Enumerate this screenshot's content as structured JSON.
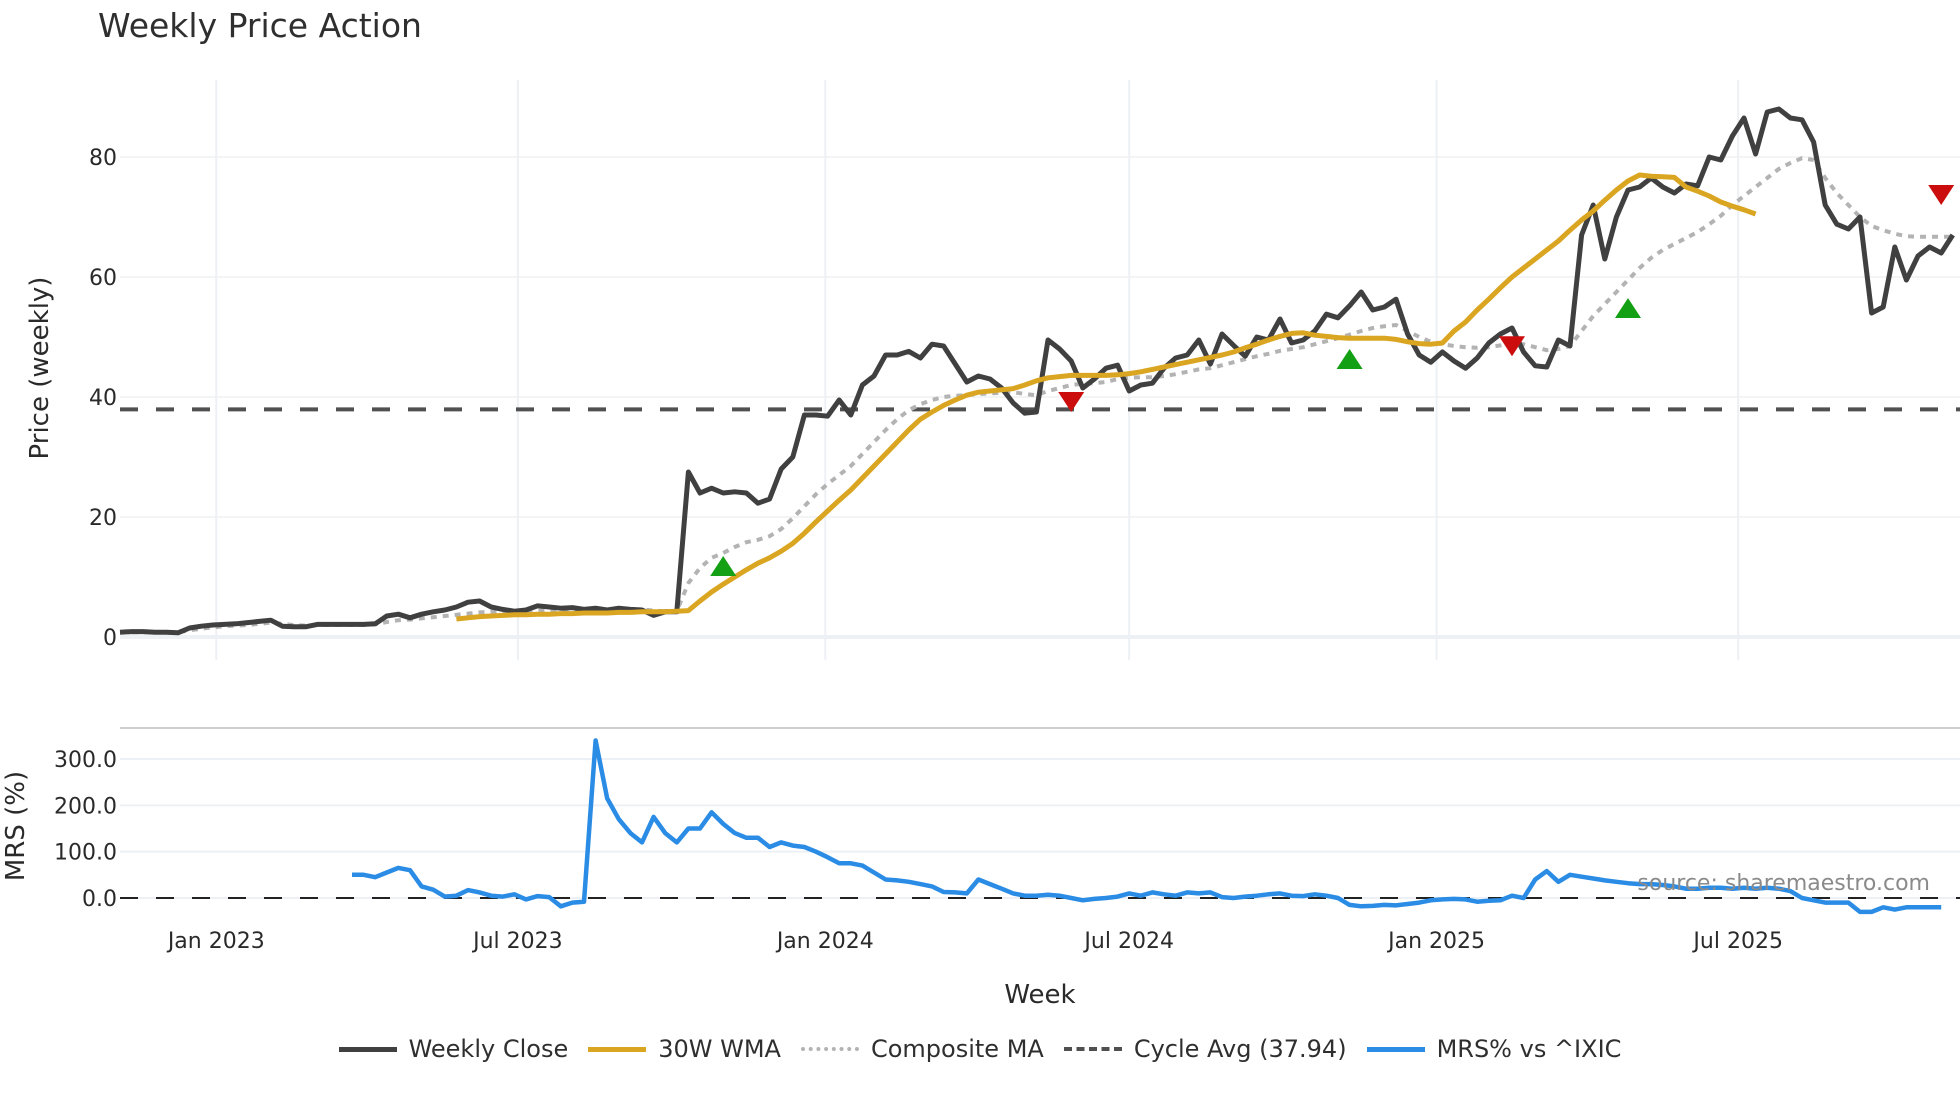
{
  "title": "Weekly Price Action",
  "source_note": "source: sharemaestro.com",
  "colors": {
    "close": "#404040",
    "wma": "#daa520",
    "composite": "#b3b3b3",
    "cycle": "#505050",
    "mrs": "#2b8ce6",
    "buy": "#14a014",
    "sell": "#cc0d0d",
    "grid": "#edf0f4"
  },
  "legend": [
    {
      "key": "close",
      "label": "Weekly Close",
      "style": "solid"
    },
    {
      "key": "wma",
      "label": "30W WMA",
      "style": "solid"
    },
    {
      "key": "composite",
      "label": "Composite MA",
      "style": "dotted"
    },
    {
      "key": "cycle",
      "label": "Cycle Avg (37.94)",
      "style": "dashed"
    },
    {
      "key": "mrs",
      "label": "MRS% vs ^IXIC",
      "style": "solid"
    }
  ],
  "chart_data": [
    {
      "type": "line",
      "title": "Weekly Price Action",
      "xlabel": "Week",
      "ylabel": "Price (weekly)",
      "ylim": [
        0,
        92
      ],
      "yticks": [
        0,
        20,
        40,
        60,
        80
      ],
      "xticks": [
        {
          "label": "Jan 2023",
          "week": 8.3
        },
        {
          "label": "Jul 2023",
          "week": 34.3
        },
        {
          "label": "Jan 2024",
          "week": 60.8
        },
        {
          "label": "Jul 2024",
          "week": 87.0
        },
        {
          "label": "Jan 2025",
          "week": 113.5
        },
        {
          "label": "Jul 2025",
          "week": 139.5
        }
      ],
      "grid": true,
      "legend_position": "bottom",
      "cycle_avg": 37.94,
      "series": [
        {
          "name": "Weekly Close",
          "start_week": 0,
          "values": [
            0.8,
            0.9,
            0.9,
            0.8,
            0.8,
            0.7,
            1.5,
            1.8,
            2.0,
            2.1,
            2.2,
            2.4,
            2.6,
            2.8,
            1.8,
            1.7,
            1.7,
            2.1,
            2.1,
            2.1,
            2.1,
            2.1,
            2.2,
            3.5,
            3.8,
            3.2,
            3.8,
            4.2,
            4.5,
            5.0,
            5.8,
            6.0,
            5.0,
            4.6,
            4.3,
            4.5,
            5.2,
            5.0,
            4.8,
            4.9,
            4.6,
            4.8,
            4.5,
            4.8,
            4.6,
            4.5,
            3.6,
            4.2,
            4.2,
            27.5,
            24.0,
            24.8,
            24.0,
            24.2,
            24.0,
            22.3,
            23.0,
            28.0,
            30.0,
            37.0,
            37.0,
            36.8,
            39.5,
            37.0,
            42.0,
            43.5,
            47.0,
            47.0,
            47.6,
            46.5,
            48.8,
            48.5,
            45.5,
            42.5,
            43.5,
            43.0,
            41.5,
            39.0,
            37.3,
            37.5,
            49.5,
            48.0,
            46.0,
            41.5,
            43.0,
            44.8,
            45.3,
            41.0,
            42.0,
            42.3,
            44.8,
            46.5,
            47.0,
            49.5,
            45.5,
            50.5,
            48.6,
            46.8,
            50.0,
            49.5,
            53.0,
            49.0,
            49.5,
            51.0,
            53.8,
            53.2,
            55.2,
            57.5,
            54.5,
            55.0,
            56.3,
            50.5,
            47.0,
            45.8,
            47.5,
            46.0,
            44.8,
            46.5,
            49.0,
            50.5,
            51.5,
            47.5,
            45.2,
            45.0,
            49.5,
            48.5,
            67.0,
            72.0,
            63.0,
            70.0,
            74.5,
            75.0,
            76.5,
            75.0,
            74.0,
            75.5,
            75.2,
            80.0,
            79.5,
            83.5,
            86.5,
            80.5,
            87.5,
            88.0,
            86.5,
            86.2,
            82.5,
            72.0,
            68.8,
            68.0,
            70.0,
            54.0,
            55.0,
            65.0,
            59.5,
            63.5,
            65.0,
            64.0,
            67.0
          ]
        },
        {
          "name": "30W WMA",
          "start_week": 29,
          "values": [
            3.0,
            3.2,
            3.4,
            3.5,
            3.6,
            3.7,
            3.7,
            3.8,
            3.8,
            3.9,
            3.9,
            4.0,
            4.0,
            4.0,
            4.1,
            4.1,
            4.2,
            4.2,
            4.2,
            4.3,
            4.4,
            6.0,
            7.5,
            8.8,
            10.0,
            11.2,
            12.3,
            13.2,
            14.3,
            15.6,
            17.3,
            19.2,
            21.0,
            22.8,
            24.5,
            26.5,
            28.5,
            30.5,
            32.5,
            34.5,
            36.3,
            37.5,
            38.6,
            39.5,
            40.3,
            40.8,
            41.0,
            41.2,
            41.4,
            42.0,
            42.7,
            43.2,
            43.4,
            43.6,
            43.6,
            43.6,
            43.6,
            43.7,
            43.9,
            44.2,
            44.6,
            45.0,
            45.4,
            45.8,
            46.2,
            46.6,
            47.0,
            47.5,
            48.2,
            48.8,
            49.5,
            50.1,
            50.6,
            50.7,
            50.3,
            50.1,
            49.9,
            49.8,
            49.8,
            49.8,
            49.8,
            49.6,
            49.2,
            48.9,
            48.8,
            49.0,
            51.0,
            52.5,
            54.5,
            56.3,
            58.2,
            60.0,
            61.5,
            63.0,
            64.5,
            66.0,
            67.8,
            69.5,
            71.0,
            72.8,
            74.5,
            76.0,
            77.0,
            76.8,
            76.7,
            76.6,
            75.0,
            74.3,
            73.5,
            72.5,
            71.8,
            71.2,
            70.5
          ]
        },
        {
          "name": "Composite MA",
          "start_week": 0,
          "values": [
            0.8,
            0.8,
            0.8,
            0.8,
            0.8,
            0.8,
            1.1,
            1.4,
            1.6,
            1.8,
            1.9,
            2.0,
            2.2,
            2.4,
            2.2,
            2.0,
            1.9,
            2.0,
            2.0,
            2.0,
            2.0,
            2.0,
            2.1,
            2.5,
            2.8,
            2.9,
            3.1,
            3.3,
            3.5,
            3.7,
            3.9,
            4.1,
            4.2,
            4.3,
            4.3,
            4.3,
            4.4,
            4.5,
            4.5,
            4.6,
            4.6,
            4.6,
            4.6,
            4.6,
            4.6,
            4.6,
            4.4,
            4.3,
            4.3,
            9.0,
            11.5,
            13.2,
            14.0,
            15.0,
            15.8,
            16.2,
            16.8,
            18.0,
            19.8,
            21.8,
            23.8,
            25.5,
            27.0,
            28.5,
            30.5,
            32.5,
            34.5,
            36.3,
            37.8,
            38.8,
            39.5,
            40.0,
            40.2,
            40.3,
            40.5,
            40.6,
            40.7,
            40.8,
            40.5,
            40.3,
            41.0,
            41.5,
            42.0,
            42.2,
            42.3,
            42.5,
            43.0,
            43.2,
            43.3,
            43.3,
            43.5,
            43.8,
            44.2,
            44.6,
            44.8,
            45.3,
            45.8,
            46.3,
            46.8,
            47.2,
            47.7,
            48.0,
            48.3,
            48.8,
            49.3,
            49.8,
            50.4,
            51.0,
            51.5,
            51.8,
            52.0,
            51.0,
            50.0,
            49.2,
            48.8,
            48.5,
            48.3,
            48.2,
            48.3,
            48.6,
            49.0,
            48.8,
            48.3,
            47.8,
            48.0,
            48.5,
            51.0,
            53.5,
            55.5,
            57.5,
            59.5,
            61.5,
            63.2,
            64.5,
            65.5,
            66.5,
            67.5,
            68.8,
            70.2,
            72.0,
            73.5,
            75.0,
            76.5,
            78.0,
            79.0,
            79.8,
            79.5,
            76.5,
            74.0,
            72.0,
            70.0,
            68.5,
            67.8,
            67.2,
            66.8,
            66.7,
            66.7,
            66.7,
            66.7
          ]
        }
      ],
      "markers": {
        "buy": [
          {
            "week": 52,
            "value": 11.5
          },
          {
            "week": 106,
            "value": 46.0
          },
          {
            "week": 130,
            "value": 54.5
          }
        ],
        "sell": [
          {
            "week": 82,
            "value": 39.5
          },
          {
            "week": 120,
            "value": 48.8
          },
          {
            "week": 157,
            "value": 74.0
          }
        ]
      }
    },
    {
      "type": "line",
      "title": "",
      "xlabel": "Week",
      "ylabel": "MRS (%)",
      "ylim": [
        -60,
        365
      ],
      "yticks": [
        "0.0",
        "100.0",
        "200.0",
        "300.0"
      ],
      "grid": true,
      "series": [
        {
          "name": "MRS% vs ^IXIC",
          "start_week": 20,
          "values": [
            50,
            50,
            45,
            55,
            65,
            60,
            25,
            18,
            3,
            5,
            17,
            12,
            5,
            3,
            8,
            -3,
            4,
            2,
            -18,
            -10,
            -8,
            340,
            215,
            170,
            140,
            120,
            175,
            140,
            120,
            150,
            150,
            185,
            160,
            140,
            130,
            130,
            110,
            120,
            113,
            110,
            100,
            88,
            75,
            75,
            70,
            55,
            40,
            38,
            35,
            30,
            25,
            13,
            12,
            10,
            40,
            30,
            20,
            10,
            5,
            5,
            7,
            5,
            0,
            -5,
            -2,
            0,
            3,
            10,
            5,
            12,
            8,
            5,
            12,
            10,
            12,
            2,
            0,
            3,
            5,
            8,
            10,
            5,
            4,
            8,
            5,
            0,
            -15,
            -18,
            -17,
            -15,
            -16,
            -13,
            -10,
            -5,
            -3,
            -2,
            -3,
            -8,
            -6,
            -5,
            5,
            0,
            40,
            58,
            35,
            50,
            46,
            42,
            38,
            35,
            32,
            30,
            30,
            28,
            25,
            20,
            20,
            22,
            22,
            20,
            22,
            20,
            22,
            20,
            15,
            0,
            -5,
            -10,
            -10,
            -10,
            -30,
            -30,
            -20,
            -25,
            -20,
            -20,
            -20,
            -20
          ]
        }
      ],
      "reference_line": 0
    }
  ]
}
